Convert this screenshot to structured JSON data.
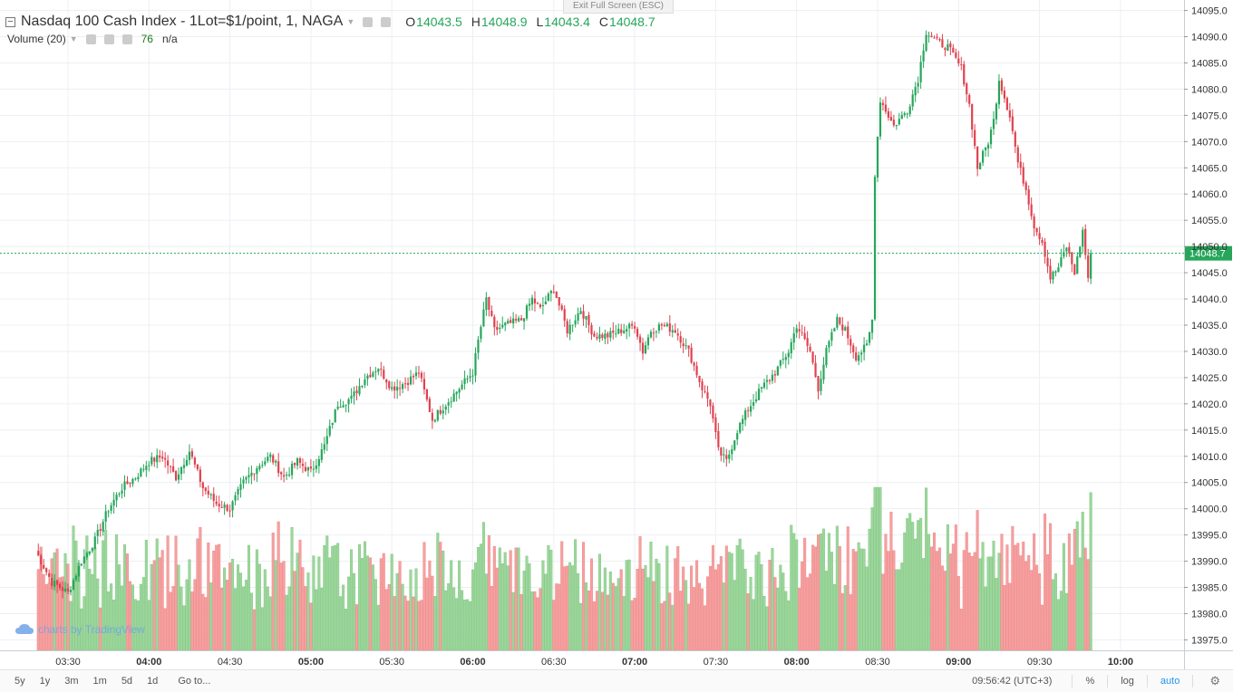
{
  "header": {
    "symbol": "Nasdaq 100 Cash Index - 1Lot=$1/point, 1, NAGA",
    "o_label": "O",
    "o_value": "14043.5",
    "h_label": "H",
    "h_value": "14048.9",
    "l_label": "L",
    "l_value": "14043.4",
    "c_label": "C",
    "c_value": "14048.7"
  },
  "volume": {
    "label": "Volume (20)",
    "value": "76",
    "extra": "n/a"
  },
  "exit_fullscreen": "Exit Full Screen (ESC)",
  "watermark": "charts by TradingView",
  "bottombar": {
    "timeframes": [
      "5y",
      "1y",
      "3m",
      "1m",
      "5d",
      "1d"
    ],
    "goto": "Go to...",
    "clock": "09:56:42 (UTC+3)",
    "percent": "%",
    "log": "log",
    "auto": "auto"
  },
  "colors": {
    "up": "#26a65b",
    "down": "#e0424f",
    "vol_up": "#9cd69c",
    "vol_down": "#f5a0a0",
    "grid": "#eceff2",
    "last_price": "#26a65b"
  },
  "chart_data": {
    "type": "candlestick",
    "interval_minutes": 1,
    "price_axis": {
      "range": [
        13973,
        14097
      ],
      "ticks": [
        13975,
        13980,
        13985,
        13990,
        13995,
        14000,
        14005,
        14010,
        14015,
        14020,
        14025,
        14030,
        14035,
        14040,
        14045,
        14050,
        14055,
        14060,
        14065,
        14070,
        14075,
        14080,
        14085,
        14090,
        14095
      ]
    },
    "time_axis": {
      "labels": [
        "03:30",
        "04:00",
        "04:30",
        "05:00",
        "05:30",
        "06:00",
        "06:30",
        "07:00",
        "07:30",
        "08:00",
        "08:30",
        "09:00",
        "09:30",
        "10:00"
      ]
    },
    "last_price": "14048.7",
    "price_anchors": [
      [
        "03:18",
        13992
      ],
      [
        "03:24",
        13986
      ],
      [
        "03:30",
        13984
      ],
      [
        "03:35",
        13990
      ],
      [
        "03:40",
        13994
      ],
      [
        "03:45",
        14000
      ],
      [
        "03:50",
        14004
      ],
      [
        "03:55",
        14006
      ],
      [
        "04:00",
        14009
      ],
      [
        "04:05",
        14010
      ],
      [
        "04:10",
        14006
      ],
      [
        "04:15",
        14011
      ],
      [
        "04:20",
        14004
      ],
      [
        "04:25",
        14001
      ],
      [
        "04:30",
        14000
      ],
      [
        "04:35",
        14005
      ],
      [
        "04:40",
        14008
      ],
      [
        "04:45",
        14010
      ],
      [
        "04:50",
        14006
      ],
      [
        "04:55",
        14009
      ],
      [
        "05:00",
        14007
      ],
      [
        "05:05",
        14012
      ],
      [
        "05:10",
        14020
      ],
      [
        "05:15",
        14021
      ],
      [
        "05:20",
        14025
      ],
      [
        "05:25",
        14027
      ],
      [
        "05:30",
        14023
      ],
      [
        "05:35",
        14024
      ],
      [
        "05:40",
        14026
      ],
      [
        "05:45",
        14017
      ],
      [
        "05:50",
        14020
      ],
      [
        "05:55",
        14023
      ],
      [
        "06:00",
        14026
      ],
      [
        "06:02",
        14032
      ],
      [
        "06:05",
        14040
      ],
      [
        "06:08",
        14034
      ],
      [
        "06:12",
        14035
      ],
      [
        "06:18",
        14036
      ],
      [
        "06:22",
        14040
      ],
      [
        "06:25",
        14038
      ],
      [
        "06:30",
        14042
      ],
      [
        "06:35",
        14034
      ],
      [
        "06:40",
        14038
      ],
      [
        "06:45",
        14033
      ],
      [
        "06:50",
        14033
      ],
      [
        "06:55",
        14034
      ],
      [
        "07:00",
        14035
      ],
      [
        "07:03",
        14030
      ],
      [
        "07:06",
        14034
      ],
      [
        "07:10",
        14035
      ],
      [
        "07:15",
        14034
      ],
      [
        "07:20",
        14030
      ],
      [
        "07:25",
        14023
      ],
      [
        "07:28",
        14020
      ],
      [
        "07:31",
        14011
      ],
      [
        "07:34",
        14009
      ],
      [
        "07:38",
        14015
      ],
      [
        "07:42",
        14019
      ],
      [
        "07:47",
        14023
      ],
      [
        "07:52",
        14026
      ],
      [
        "07:57",
        14030
      ],
      [
        "08:00",
        14035
      ],
      [
        "08:05",
        14030
      ],
      [
        "08:08",
        14023
      ],
      [
        "08:11",
        14030
      ],
      [
        "08:15",
        14036
      ],
      [
        "08:18",
        14034
      ],
      [
        "08:22",
        14029
      ],
      [
        "08:26",
        14031
      ],
      [
        "08:28",
        14036
      ],
      [
        "08:29",
        14064
      ],
      [
        "08:31",
        14078
      ],
      [
        "08:36",
        14073
      ],
      [
        "08:41",
        14076
      ],
      [
        "08:45",
        14082
      ],
      [
        "08:48",
        14091
      ],
      [
        "08:52",
        14089
      ],
      [
        "08:56",
        14088
      ],
      [
        "09:01",
        14084
      ],
      [
        "09:04",
        14077
      ],
      [
        "09:07",
        14065
      ],
      [
        "09:11",
        14070
      ],
      [
        "09:13",
        14074
      ],
      [
        "09:15",
        14082
      ],
      [
        "09:19",
        14075
      ],
      [
        "09:22",
        14066
      ],
      [
        "09:25",
        14061
      ],
      [
        "09:28",
        14054
      ],
      [
        "09:31",
        14051
      ],
      [
        "09:34",
        14044
      ],
      [
        "09:37",
        14046
      ],
      [
        "09:40",
        14050
      ],
      [
        "09:43",
        14045
      ],
      [
        "09:46",
        14053
      ],
      [
        "09:48",
        14044
      ],
      [
        "09:49",
        14048.7
      ]
    ]
  }
}
